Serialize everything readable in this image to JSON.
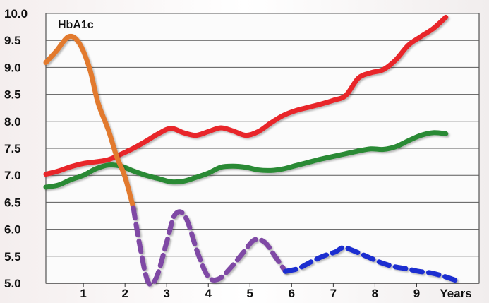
{
  "chart_data": {
    "type": "line",
    "title": "HbA1c",
    "xlabel": "Years",
    "ylabel": "",
    "x_ticks": [
      "1",
      "2",
      "3",
      "4",
      "5",
      "6",
      "7",
      "8",
      "9"
    ],
    "y_ticks": [
      "10.0",
      "9.5",
      "9.0",
      "8.5",
      "8.0",
      "7.5",
      "7.0",
      "6.5",
      "6.0",
      "5.5",
      "5.0"
    ],
    "xlim": [
      0.1,
      10.5
    ],
    "ylim": [
      5.0,
      10.0
    ],
    "grid": true,
    "series": [
      {
        "name": "Red",
        "color": "#e8262b",
        "style": "solid",
        "points": [
          [
            0.1,
            7.02
          ],
          [
            0.4,
            7.08
          ],
          [
            0.7,
            7.16
          ],
          [
            1.0,
            7.22
          ],
          [
            1.3,
            7.25
          ],
          [
            1.6,
            7.29
          ],
          [
            1.9,
            7.39
          ],
          [
            2.2,
            7.5
          ],
          [
            2.5,
            7.63
          ],
          [
            2.8,
            7.77
          ],
          [
            3.1,
            7.87
          ],
          [
            3.4,
            7.79
          ],
          [
            3.7,
            7.74
          ],
          [
            4.0,
            7.81
          ],
          [
            4.3,
            7.88
          ],
          [
            4.6,
            7.82
          ],
          [
            4.9,
            7.74
          ],
          [
            5.2,
            7.81
          ],
          [
            5.5,
            7.97
          ],
          [
            5.8,
            8.11
          ],
          [
            6.1,
            8.2
          ],
          [
            6.4,
            8.26
          ],
          [
            6.7,
            8.32
          ],
          [
            7.0,
            8.39
          ],
          [
            7.3,
            8.48
          ],
          [
            7.6,
            8.8
          ],
          [
            7.9,
            8.9
          ],
          [
            8.2,
            8.96
          ],
          [
            8.5,
            9.14
          ],
          [
            8.8,
            9.41
          ],
          [
            9.1,
            9.57
          ],
          [
            9.4,
            9.72
          ],
          [
            9.7,
            9.93
          ]
        ]
      },
      {
        "name": "Green",
        "color": "#2c8a35",
        "style": "solid",
        "points": [
          [
            0.1,
            6.78
          ],
          [
            0.4,
            6.82
          ],
          [
            0.7,
            6.92
          ],
          [
            1.0,
            7.0
          ],
          [
            1.3,
            7.12
          ],
          [
            1.6,
            7.19
          ],
          [
            1.9,
            7.17
          ],
          [
            2.2,
            7.08
          ],
          [
            2.5,
            7.0
          ],
          [
            2.8,
            6.94
          ],
          [
            3.1,
            6.88
          ],
          [
            3.4,
            6.89
          ],
          [
            3.7,
            6.96
          ],
          [
            4.0,
            7.04
          ],
          [
            4.3,
            7.15
          ],
          [
            4.6,
            7.17
          ],
          [
            4.9,
            7.15
          ],
          [
            5.2,
            7.1
          ],
          [
            5.5,
            7.09
          ],
          [
            5.8,
            7.12
          ],
          [
            6.1,
            7.18
          ],
          [
            6.4,
            7.24
          ],
          [
            6.7,
            7.3
          ],
          [
            7.0,
            7.35
          ],
          [
            7.3,
            7.4
          ],
          [
            7.6,
            7.45
          ],
          [
            7.9,
            7.49
          ],
          [
            8.2,
            7.48
          ],
          [
            8.5,
            7.53
          ],
          [
            8.8,
            7.64
          ],
          [
            9.1,
            7.74
          ],
          [
            9.4,
            7.79
          ],
          [
            9.7,
            7.77
          ]
        ]
      },
      {
        "name": "Orange",
        "color": "#e27a2f",
        "style": "solid",
        "points": [
          [
            0.1,
            9.09
          ],
          [
            0.35,
            9.3
          ],
          [
            0.65,
            9.57
          ],
          [
            0.9,
            9.45
          ],
          [
            1.15,
            8.98
          ],
          [
            1.35,
            8.35
          ],
          [
            1.6,
            7.84
          ],
          [
            1.8,
            7.35
          ],
          [
            2.0,
            6.97
          ],
          [
            2.2,
            6.4
          ]
        ]
      },
      {
        "name": "Orange-Purple Oscillation",
        "color": "#7f4aa5",
        "style": "dashed",
        "points": [
          [
            2.2,
            6.4
          ],
          [
            2.35,
            5.72
          ],
          [
            2.55,
            5.03
          ],
          [
            2.75,
            5.1
          ],
          [
            3.0,
            5.76
          ],
          [
            3.2,
            6.27
          ],
          [
            3.45,
            6.23
          ],
          [
            3.75,
            5.55
          ],
          [
            4.0,
            5.12
          ],
          [
            4.25,
            5.08
          ],
          [
            4.55,
            5.3
          ],
          [
            4.85,
            5.58
          ],
          [
            5.1,
            5.8
          ],
          [
            5.35,
            5.76
          ],
          [
            5.6,
            5.5
          ],
          [
            5.85,
            5.22
          ]
        ]
      },
      {
        "name": "Blue",
        "color": "#1f2fd0",
        "style": "dashed",
        "points": [
          [
            5.85,
            5.22
          ],
          [
            6.15,
            5.27
          ],
          [
            6.45,
            5.39
          ],
          [
            6.75,
            5.5
          ],
          [
            7.05,
            5.58
          ],
          [
            7.25,
            5.66
          ],
          [
            7.55,
            5.58
          ],
          [
            7.85,
            5.48
          ],
          [
            8.15,
            5.38
          ],
          [
            8.45,
            5.31
          ],
          [
            8.75,
            5.27
          ],
          [
            9.05,
            5.22
          ],
          [
            9.35,
            5.19
          ],
          [
            9.65,
            5.13
          ],
          [
            9.95,
            5.05
          ]
        ]
      }
    ]
  }
}
